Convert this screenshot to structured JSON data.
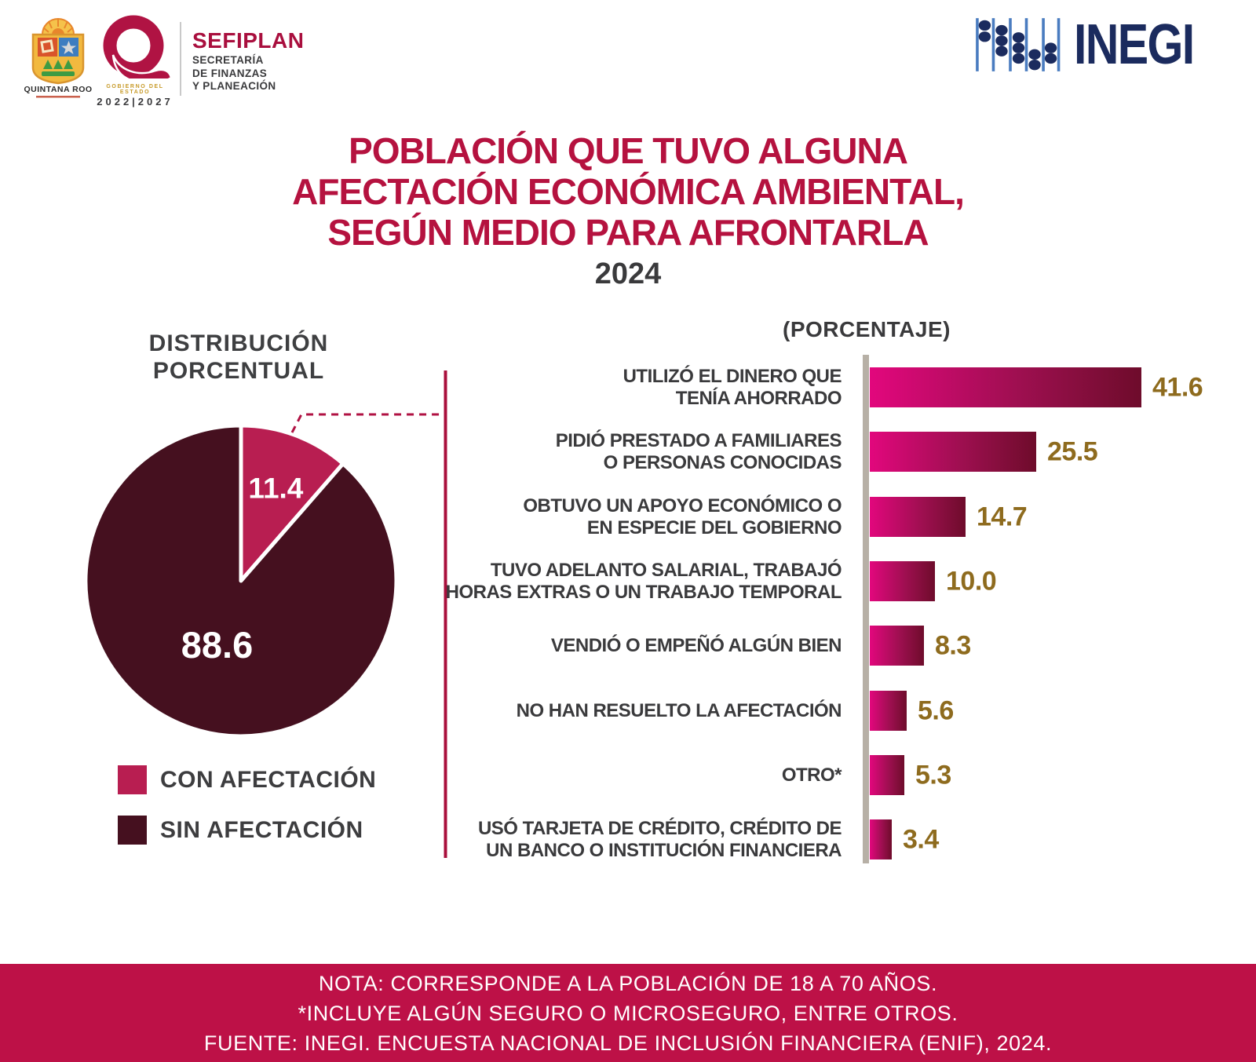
{
  "header": {
    "qroo_logo": {
      "name": "QUINTANA ROO"
    },
    "state_logo": {
      "caption": "GOBIERNO DEL ESTADO",
      "years": "2022|2027"
    },
    "sefiplan": {
      "title": "SEFIPLAN",
      "lines": [
        "SECRETARÍA",
        "DE FINANZAS",
        "Y PLANEACIÓN"
      ]
    },
    "inegi": {
      "wordmark": "INEGI"
    }
  },
  "title": {
    "lines": [
      "POBLACIÓN QUE TUVO ALGUNA",
      "AFECTACIÓN ECONÓMICA AMBIENTAL,",
      "SEGÚN MEDIO PARA AFRONTARLA"
    ],
    "year": "2024"
  },
  "left_panel": {
    "heading_lines": [
      "DISTRIBUCIÓN",
      "PORCENTUAL"
    ]
  },
  "right_panel": {
    "heading": "(PORCENTAJE)"
  },
  "legend": {
    "items": [
      {
        "label": "CON AFECTACIÓN",
        "color": "#B81E51"
      },
      {
        "label": "SIN AFECTACIÓN",
        "color": "#45101F"
      }
    ]
  },
  "footer": {
    "lines": [
      "NOTA: CORRESPONDE A LA POBLACIÓN DE 18 A 70 AÑOS.",
      "*INCLUYE ALGÚN SEGURO O MICROSEGURO, ENTRE OTROS.",
      "FUENTE: INEGI. ENCUESTA NACIONAL DE INCLUSIÓN FINANCIERA (ENIF), 2024."
    ]
  },
  "colors": {
    "accent_crimson": "#B5123F",
    "footer_band": "#BD1147",
    "pie_small_slice": "#B81E51",
    "pie_large_slice": "#45101F",
    "bar_gradient_start": "#E2077D",
    "bar_gradient_end": "#6E0C2B",
    "value_gold": "#8E6B1E",
    "label_gray": "#3A3A3C",
    "axis_gray": "#B7B0A6",
    "inegi_navy": "#1B2B5E"
  },
  "chart_data": [
    {
      "type": "pie",
      "title": "DISTRIBUCIÓN PORCENTUAL",
      "labels": [
        "CON AFECTACIÓN",
        "SIN AFECTACIÓN"
      ],
      "values": [
        11.4,
        88.6
      ],
      "colors": [
        "#B81E51",
        "#45101F"
      ],
      "legend_position": "bottom-left"
    },
    {
      "type": "bar",
      "orientation": "horizontal",
      "title": "(PORCENTAJE)",
      "xlim": [
        0,
        45
      ],
      "grid": false,
      "rows": [
        {
          "label_lines": [
            "UTILIZÓ EL DINERO QUE",
            "TENÍA AHORRADO"
          ],
          "value": 41.6
        },
        {
          "label_lines": [
            "PIDIÓ PRESTADO A FAMILIARES",
            "O PERSONAS CONOCIDAS"
          ],
          "value": 25.5
        },
        {
          "label_lines": [
            "OBTUVO UN APOYO ECONÓMICO O",
            "EN ESPECIE DEL GOBIERNO"
          ],
          "value": 14.7
        },
        {
          "label_lines": [
            "TUVO ADELANTO SALARIAL, TRABAJÓ",
            "HORAS EXTRAS O UN TRABAJO TEMPORAL"
          ],
          "value": 10.0
        },
        {
          "label_lines": [
            "VENDIÓ O EMPEÑÓ ALGÚN BIEN"
          ],
          "value": 8.3
        },
        {
          "label_lines": [
            "NO HAN RESUELTO LA AFECTACIÓN"
          ],
          "value": 5.6
        },
        {
          "label_lines": [
            "OTRO*"
          ],
          "value": 5.3
        },
        {
          "label_lines": [
            "USÓ TARJETA DE CRÉDITO, CRÉDITO DE",
            "UN BANCO O INSTITUCIÓN FINANCIERA"
          ],
          "value": 3.4
        }
      ]
    }
  ]
}
